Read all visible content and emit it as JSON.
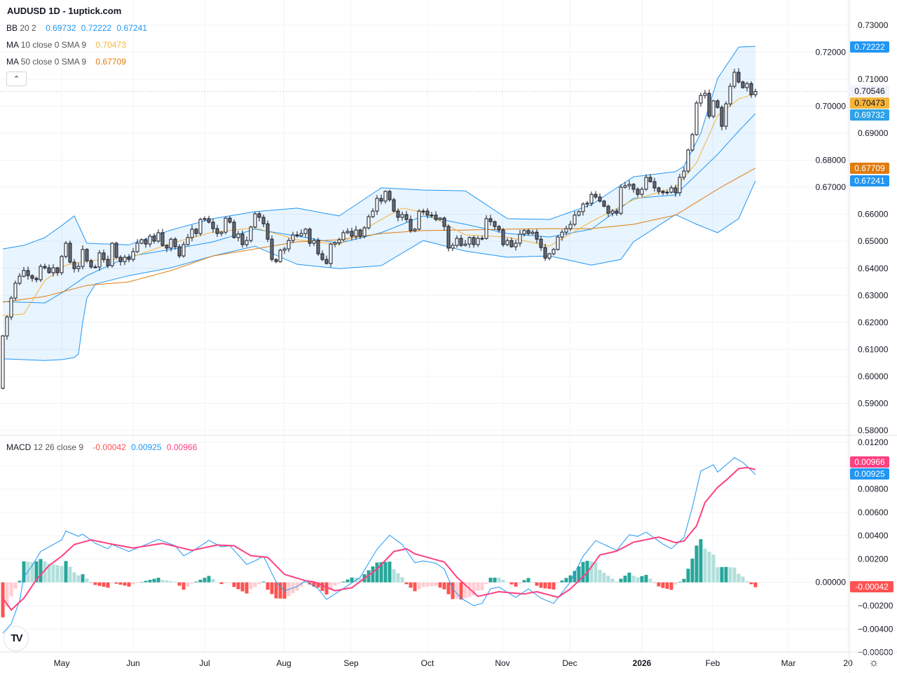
{
  "header": {
    "title": "AUDUSD 1D - 1uptick.com"
  },
  "legend": {
    "bb": {
      "name": "BB",
      "params": "20 2",
      "basis": "0.69732",
      "upper": "0.72222",
      "lower": "0.67241"
    },
    "ma10": {
      "name": "MA",
      "params": "10 close 0 SMA 9",
      "value": "0.70473"
    },
    "ma50": {
      "name": "MA",
      "params": "50 close 0 SMA 9",
      "value": "0.67709"
    },
    "collapse_icon": "chevron-up"
  },
  "macd_legend": {
    "name": "MACD",
    "params": "12 26 close 9",
    "histogram": "-0.00042",
    "macd": "0.00925",
    "signal": "0.00966"
  },
  "price_tags": {
    "bb_upper": "0.72222",
    "last": "0.70546",
    "ma10": "0.70473",
    "bb_basis": "0.69732",
    "ma50": "0.67709",
    "bb_lower": "0.67241"
  },
  "macd_tags": {
    "signal": "0.00966",
    "macd": "0.00925",
    "histogram": "-0.00042"
  },
  "colors": {
    "bb": "#2196f3",
    "ma10": "#f5b43c",
    "ma50": "#e07c10",
    "macd": "#2196f3",
    "signal": "#ff4081",
    "hist_up": "#26a69a",
    "hist_up_light": "#b2dfdb",
    "hist_down": "#ff5252",
    "hist_down_light": "#ffcdd2"
  },
  "chart_data": [
    {
      "type": "candlestick",
      "symbol": "AUDUSD",
      "interval": "1D",
      "y_ticks": [
        "0.73000",
        "0.72000",
        "0.71000",
        "0.70000",
        "0.69000",
        "0.68000",
        "0.67000",
        "0.66000",
        "0.65000",
        "0.64000",
        "0.63000",
        "0.62000",
        "0.61000",
        "0.60000",
        "0.59000",
        "0.58000"
      ],
      "ylim": [
        0.58,
        0.73
      ],
      "x_ticks": [
        "May",
        "Jun",
        "Jul",
        "Aug",
        "Sep",
        "Oct",
        "Nov",
        "Dec",
        "2026",
        "Feb",
        "Mar",
        "20"
      ],
      "first_open": 0.5956,
      "close": [
        0.615,
        0.622,
        0.629,
        0.6345,
        0.6371,
        0.6392,
        0.6373,
        0.6363,
        0.6358,
        0.6407,
        0.6402,
        0.6384,
        0.6402,
        0.6384,
        0.6444,
        0.6493,
        0.6423,
        0.6399,
        0.6407,
        0.647,
        0.6428,
        0.6405,
        0.6405,
        0.6457,
        0.6433,
        0.641,
        0.6493,
        0.6441,
        0.6425,
        0.6441,
        0.6433,
        0.6462,
        0.6493,
        0.6506,
        0.649,
        0.6519,
        0.6501,
        0.6532,
        0.6485,
        0.6475,
        0.6508,
        0.648,
        0.6446,
        0.6488,
        0.6514,
        0.6545,
        0.6529,
        0.6581,
        0.6584,
        0.6571,
        0.6547,
        0.6529,
        0.6534,
        0.6586,
        0.6571,
        0.6514,
        0.6527,
        0.6488,
        0.6503,
        0.6553,
        0.6602,
        0.6589,
        0.6565,
        0.6508,
        0.6433,
        0.6425,
        0.6467,
        0.6472,
        0.6503,
        0.6524,
        0.6521,
        0.6529,
        0.6545,
        0.6493,
        0.6503,
        0.6454,
        0.6433,
        0.6418,
        0.649,
        0.6495,
        0.6506,
        0.6532,
        0.6537,
        0.6519,
        0.6542,
        0.6519,
        0.655,
        0.6591,
        0.6612,
        0.6659,
        0.6649,
        0.6685,
        0.6654,
        0.6612,
        0.6589,
        0.6599,
        0.6581,
        0.654,
        0.6545,
        0.6612,
        0.6612,
        0.6597,
        0.6597,
        0.6581,
        0.6586,
        0.6555,
        0.6475,
        0.6485,
        0.6511,
        0.6485,
        0.649,
        0.6514,
        0.6488,
        0.6511,
        0.6511,
        0.6584,
        0.6573,
        0.6555,
        0.6542,
        0.6488,
        0.6503,
        0.648,
        0.6493,
        0.6527,
        0.654,
        0.6529,
        0.6534,
        0.6508,
        0.6477,
        0.6438,
        0.6454,
        0.647,
        0.6516,
        0.6534,
        0.6547,
        0.6563,
        0.6597,
        0.661,
        0.6638,
        0.6641,
        0.6674,
        0.6664,
        0.6649,
        0.663,
        0.6604,
        0.6612,
        0.6604,
        0.67,
        0.6706,
        0.6711,
        0.6693,
        0.6674,
        0.6693,
        0.6737,
        0.6721,
        0.6698,
        0.6685,
        0.668,
        0.6682,
        0.6698,
        0.668,
        0.6737,
        0.676,
        0.6838,
        0.6895,
        0.7012,
        0.704,
        0.7048,
        0.6963,
        0.702,
        0.6996,
        0.6926,
        0.7009,
        0.7074,
        0.7126,
        0.709,
        0.7069,
        0.7084,
        0.7043,
        0.70546
      ],
      "overlays": {
        "bb_upper": [
          [
            0,
            0.6472
          ],
          [
            5,
            0.6485
          ],
          [
            10,
            0.6514
          ],
          [
            14,
            0.6558
          ],
          [
            17,
            0.6594
          ],
          [
            20,
            0.6493
          ],
          [
            30,
            0.6487
          ],
          [
            40,
            0.6542
          ],
          [
            50,
            0.6584
          ],
          [
            60,
            0.661
          ],
          [
            70,
            0.6623
          ],
          [
            80,
            0.6594
          ],
          [
            90,
            0.6698
          ],
          [
            100,
            0.669
          ],
          [
            110,
            0.6687
          ],
          [
            120,
            0.6584
          ],
          [
            130,
            0.6581
          ],
          [
            140,
            0.6636
          ],
          [
            150,
            0.6739
          ],
          [
            160,
            0.6758
          ],
          [
            162,
            0.6778
          ],
          [
            166,
            0.69
          ],
          [
            170,
            0.7103
          ],
          [
            175,
            0.7219
          ],
          [
            179,
            0.7222
          ]
        ],
        "bb_basis": [
          [
            0,
            0.6277
          ],
          [
            10,
            0.6272
          ],
          [
            14,
            0.6309
          ],
          [
            20,
            0.6373
          ],
          [
            30,
            0.6444
          ],
          [
            40,
            0.647
          ],
          [
            50,
            0.6498
          ],
          [
            60,
            0.6545
          ],
          [
            70,
            0.6519
          ],
          [
            80,
            0.6493
          ],
          [
            90,
            0.6532
          ],
          [
            100,
            0.6594
          ],
          [
            110,
            0.6563
          ],
          [
            120,
            0.6529
          ],
          [
            130,
            0.6516
          ],
          [
            140,
            0.6545
          ],
          [
            150,
            0.6659
          ],
          [
            160,
            0.6672
          ],
          [
            170,
            0.6822
          ],
          [
            175,
            0.6908
          ],
          [
            179,
            0.6973
          ]
        ],
        "bb_lower": [
          [
            0,
            0.6065
          ],
          [
            10,
            0.6059
          ],
          [
            14,
            0.6062
          ],
          [
            17,
            0.607
          ],
          [
            18,
            0.6083
          ],
          [
            19,
            0.62
          ],
          [
            20,
            0.629
          ],
          [
            22,
            0.6342
          ],
          [
            30,
            0.6373
          ],
          [
            40,
            0.6402
          ],
          [
            50,
            0.6446
          ],
          [
            60,
            0.6482
          ],
          [
            70,
            0.6415
          ],
          [
            80,
            0.6399
          ],
          [
            90,
            0.641
          ],
          [
            100,
            0.6503
          ],
          [
            110,
            0.6464
          ],
          [
            120,
            0.6441
          ],
          [
            130,
            0.6446
          ],
          [
            140,
            0.6412
          ],
          [
            147,
            0.6433
          ],
          [
            150,
            0.6498
          ],
          [
            160,
            0.6599
          ],
          [
            165,
            0.6563
          ],
          [
            170,
            0.6532
          ],
          [
            175,
            0.6584
          ],
          [
            179,
            0.6724
          ]
        ],
        "ma10": [
          [
            0,
            0.6226
          ],
          [
            5,
            0.6231
          ],
          [
            10,
            0.6355
          ],
          [
            15,
            0.6412
          ],
          [
            20,
            0.6428
          ],
          [
            30,
            0.6438
          ],
          [
            40,
            0.6493
          ],
          [
            50,
            0.6534
          ],
          [
            60,
            0.655
          ],
          [
            70,
            0.6506
          ],
          [
            80,
            0.6488
          ],
          [
            90,
            0.6581
          ],
          [
            95,
            0.6623
          ],
          [
            100,
            0.6607
          ],
          [
            110,
            0.6524
          ],
          [
            120,
            0.6516
          ],
          [
            130,
            0.6482
          ],
          [
            140,
            0.6573
          ],
          [
            150,
            0.6654
          ],
          [
            160,
            0.67
          ],
          [
            165,
            0.6791
          ],
          [
            170,
            0.6965
          ],
          [
            175,
            0.7027
          ],
          [
            179,
            0.7047
          ]
        ],
        "ma50": [
          [
            0,
            0.6275
          ],
          [
            10,
            0.6296
          ],
          [
            20,
            0.6337
          ],
          [
            30,
            0.635
          ],
          [
            40,
            0.6392
          ],
          [
            50,
            0.6446
          ],
          [
            60,
            0.6472
          ],
          [
            70,
            0.6498
          ],
          [
            80,
            0.6506
          ],
          [
            90,
            0.6529
          ],
          [
            100,
            0.654
          ],
          [
            110,
            0.6542
          ],
          [
            120,
            0.6545
          ],
          [
            130,
            0.6547
          ],
          [
            140,
            0.6547
          ],
          [
            150,
            0.6563
          ],
          [
            160,
            0.6597
          ],
          [
            170,
            0.6693
          ],
          [
            175,
            0.6737
          ],
          [
            179,
            0.6771
          ]
        ]
      }
    },
    {
      "type": "line+bar",
      "name": "MACD 12 26 close 9",
      "y_ticks": [
        "0.01200",
        "0.00800",
        "0.00600",
        "0.00400",
        "0.00200",
        "0.00000",
        "−0.00200",
        "−0.00400",
        "−0.00600"
      ],
      "ylim": [
        -0.006,
        0.012
      ],
      "macd": [
        [
          0,
          -0.00436
        ],
        [
          2,
          -0.00356
        ],
        [
          4,
          -0.00156
        ],
        [
          5,
          0.00044
        ],
        [
          7,
          0.00144
        ],
        [
          9,
          0.00264
        ],
        [
          12,
          0.00324
        ],
        [
          14,
          0.00364
        ],
        [
          15,
          0.0044
        ],
        [
          18,
          0.00394
        ],
        [
          19,
          0.00414
        ],
        [
          22,
          0.00334
        ],
        [
          25,
          0.00288
        ],
        [
          26,
          0.00324
        ],
        [
          30,
          0.00264
        ],
        [
          34,
          0.00324
        ],
        [
          37,
          0.00368
        ],
        [
          41,
          0.00314
        ],
        [
          43,
          0.00228
        ],
        [
          45,
          0.00264
        ],
        [
          49,
          0.0036
        ],
        [
          52,
          0.00304
        ],
        [
          54,
          0.00314
        ],
        [
          58,
          0.00154
        ],
        [
          60,
          0.00184
        ],
        [
          62,
          0.00224
        ],
        [
          65,
          4e-05
        ],
        [
          67,
          -0.00072
        ],
        [
          70,
          -0.00036
        ],
        [
          72,
          0.00014
        ],
        [
          75,
          -0.00056
        ],
        [
          77,
          -0.00146
        ],
        [
          80,
          -0.00076
        ],
        [
          85,
          0.00044
        ],
        [
          89,
          0.00284
        ],
        [
          92,
          0.00404
        ],
        [
          95,
          0.00324
        ],
        [
          98,
          0.00168
        ],
        [
          100,
          0.00184
        ],
        [
          103,
          0.00164
        ],
        [
          105,
          0.00114
        ],
        [
          107,
          -0.00056
        ],
        [
          109,
          -0.00136
        ],
        [
          112,
          -0.002
        ],
        [
          114,
          -0.0018
        ],
        [
          116,
          -0.00056
        ],
        [
          118,
          -0.0004
        ],
        [
          122,
          -0.0013
        ],
        [
          125,
          -0.00056
        ],
        [
          128,
          -0.00136
        ],
        [
          131,
          -0.0018
        ],
        [
          135,
          4e-05
        ],
        [
          138,
          0.00224
        ],
        [
          141,
          0.00358
        ],
        [
          146,
          0.00274
        ],
        [
          149,
          0.00408
        ],
        [
          151,
          0.00394
        ],
        [
          153,
          0.0043
        ],
        [
          157,
          0.00328
        ],
        [
          159,
          0.00288
        ],
        [
          162,
          0.00384
        ],
        [
          164,
          0.00644
        ],
        [
          166,
          0.00954
        ],
        [
          169,
          0.01008
        ],
        [
          170,
          0.00944
        ],
        [
          174,
          0.01068
        ],
        [
          176,
          0.01028
        ],
        [
          179,
          0.00925
        ]
      ],
      "signal": [
        [
          0,
          -0.00136
        ],
        [
          2,
          -0.00236
        ],
        [
          5,
          -0.00136
        ],
        [
          8,
          0.00024
        ],
        [
          11,
          0.00144
        ],
        [
          14,
          0.00224
        ],
        [
          17,
          0.00324
        ],
        [
          21,
          0.00364
        ],
        [
          25,
          0.00334
        ],
        [
          31,
          0.00294
        ],
        [
          38,
          0.00334
        ],
        [
          45,
          0.00274
        ],
        [
          51,
          0.0032
        ],
        [
          55,
          0.00314
        ],
        [
          59,
          0.00228
        ],
        [
          63,
          0.00214
        ],
        [
          67,
          0.00068
        ],
        [
          72,
          0.00014
        ],
        [
          74,
          4e-05
        ],
        [
          79,
          -0.00072
        ],
        [
          83,
          -0.00046
        ],
        [
          89,
          0.00114
        ],
        [
          93,
          0.00264
        ],
        [
          96,
          0.00288
        ],
        [
          98,
          0.00244
        ],
        [
          105,
          0.00174
        ],
        [
          108,
          0.00044
        ],
        [
          113,
          -0.0012
        ],
        [
          118,
          -0.0008
        ],
        [
          124,
          -0.001
        ],
        [
          127,
          -0.0008
        ],
        [
          132,
          -0.00128
        ],
        [
          135,
          -0.00056
        ],
        [
          139,
          0.00084
        ],
        [
          142,
          0.00234
        ],
        [
          146,
          0.00268
        ],
        [
          150,
          0.00344
        ],
        [
          156,
          0.00388
        ],
        [
          160,
          0.0034
        ],
        [
          162,
          0.00354
        ],
        [
          165,
          0.00484
        ],
        [
          167,
          0.00684
        ],
        [
          170,
          0.00814
        ],
        [
          172,
          0.00874
        ],
        [
          175,
          0.00974
        ],
        [
          177,
          0.00984
        ],
        [
          179,
          0.00966
        ]
      ]
    }
  ]
}
